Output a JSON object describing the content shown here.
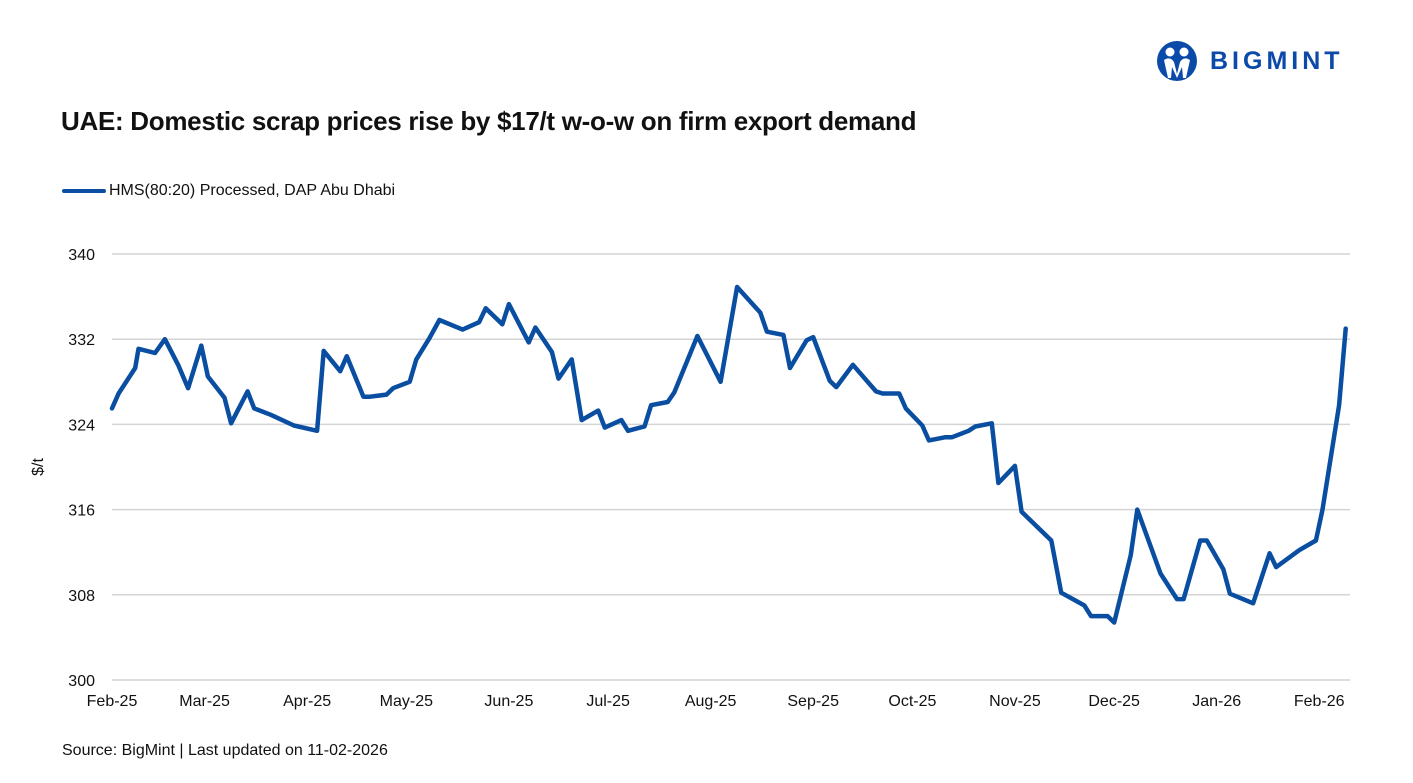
{
  "title": "UAE: Domestic scrap prices rise by $17/t w-o-w on firm export demand",
  "source": "Source: BigMint | Last updated on 11-02-2026",
  "logo": {
    "text": "BIGMINT",
    "color": "#0b4aa8"
  },
  "chart_data": {
    "type": "line",
    "title": "UAE: Domestic scrap prices rise by $17/t w-o-w on firm export demand",
    "xlabel": "",
    "ylabel": "$/t",
    "ylim": [
      300,
      340
    ],
    "yticks": [
      300,
      308,
      316,
      324,
      332,
      340
    ],
    "xlim": [
      "2025-02-01",
      "2026-02-10"
    ],
    "xticks": [
      {
        "date": "2025-02-01",
        "label": "Feb-25"
      },
      {
        "date": "2025-03-01",
        "label": "Mar-25"
      },
      {
        "date": "2025-04-01",
        "label": "Apr-25"
      },
      {
        "date": "2025-05-01",
        "label": "May-25"
      },
      {
        "date": "2025-06-01",
        "label": "Jun-25"
      },
      {
        "date": "2025-07-01",
        "label": "Jul-25"
      },
      {
        "date": "2025-08-01",
        "label": "Aug-25"
      },
      {
        "date": "2025-09-01",
        "label": "Sep-25"
      },
      {
        "date": "2025-10-01",
        "label": "Oct-25"
      },
      {
        "date": "2025-11-01",
        "label": "Nov-25"
      },
      {
        "date": "2025-12-01",
        "label": "Dec-25"
      },
      {
        "date": "2026-01-01",
        "label": "Jan-26"
      },
      {
        "date": "2026-02-01",
        "label": "Feb-26"
      }
    ],
    "grid": true,
    "legend_position": "top-left",
    "series": [
      {
        "name": "HMS(80:20) Processed, DAP Abu Dhabi",
        "color": "#0a4ea2",
        "points": [
          [
            "2025-02-01",
            325.5
          ],
          [
            "2025-02-03",
            326.9
          ],
          [
            "2025-02-08",
            329.3
          ],
          [
            "2025-02-09",
            331.1
          ],
          [
            "2025-02-14",
            330.7
          ],
          [
            "2025-02-17",
            332.0
          ],
          [
            "2025-02-21",
            329.6
          ],
          [
            "2025-02-24",
            327.4
          ],
          [
            "2025-02-28",
            331.4
          ],
          [
            "2025-03-02",
            328.5
          ],
          [
            "2025-03-07",
            326.5
          ],
          [
            "2025-03-09",
            324.1
          ],
          [
            "2025-03-14",
            327.1
          ],
          [
            "2025-03-16",
            325.5
          ],
          [
            "2025-03-21",
            324.9
          ],
          [
            "2025-03-28",
            323.9
          ],
          [
            "2025-04-04",
            323.4
          ],
          [
            "2025-04-06",
            330.9
          ],
          [
            "2025-04-11",
            329.0
          ],
          [
            "2025-04-13",
            330.4
          ],
          [
            "2025-04-18",
            326.6
          ],
          [
            "2025-04-20",
            326.6
          ],
          [
            "2025-04-25",
            326.8
          ],
          [
            "2025-04-27",
            327.4
          ],
          [
            "2025-05-02",
            328.0
          ],
          [
            "2025-05-04",
            330.1
          ],
          [
            "2025-05-08",
            332.1
          ],
          [
            "2025-05-11",
            333.8
          ],
          [
            "2025-05-18",
            332.9
          ],
          [
            "2025-05-23",
            333.6
          ],
          [
            "2025-05-25",
            334.9
          ],
          [
            "2025-05-30",
            333.4
          ],
          [
            "2025-06-01",
            335.3
          ],
          [
            "2025-06-07",
            331.7
          ],
          [
            "2025-06-09",
            333.1
          ],
          [
            "2025-06-14",
            330.8
          ],
          [
            "2025-06-16",
            328.3
          ],
          [
            "2025-06-20",
            330.1
          ],
          [
            "2025-06-23",
            324.4
          ],
          [
            "2025-06-28",
            325.3
          ],
          [
            "2025-06-30",
            323.7
          ],
          [
            "2025-07-05",
            324.4
          ],
          [
            "2025-07-07",
            323.4
          ],
          [
            "2025-07-12",
            323.8
          ],
          [
            "2025-07-14",
            325.8
          ],
          [
            "2025-07-19",
            326.1
          ],
          [
            "2025-07-21",
            327.0
          ],
          [
            "2025-07-28",
            332.3
          ],
          [
            "2025-08-04",
            328.0
          ],
          [
            "2025-08-09",
            336.9
          ],
          [
            "2025-08-16",
            334.5
          ],
          [
            "2025-08-18",
            332.7
          ],
          [
            "2025-08-23",
            332.4
          ],
          [
            "2025-08-25",
            329.3
          ],
          [
            "2025-08-30",
            331.9
          ],
          [
            "2025-09-01",
            332.2
          ],
          [
            "2025-09-06",
            328.1
          ],
          [
            "2025-09-08",
            327.5
          ],
          [
            "2025-09-13",
            329.6
          ],
          [
            "2025-09-20",
            327.1
          ],
          [
            "2025-09-22",
            326.9
          ],
          [
            "2025-09-27",
            326.9
          ],
          [
            "2025-09-29",
            325.5
          ],
          [
            "2025-10-04",
            323.9
          ],
          [
            "2025-10-06",
            322.5
          ],
          [
            "2025-10-11",
            322.8
          ],
          [
            "2025-10-13",
            322.8
          ],
          [
            "2025-10-18",
            323.4
          ],
          [
            "2025-10-20",
            323.8
          ],
          [
            "2025-10-25",
            324.1
          ],
          [
            "2025-10-27",
            318.5
          ],
          [
            "2025-11-01",
            320.1
          ],
          [
            "2025-11-03",
            315.8
          ],
          [
            "2025-11-12",
            313.1
          ],
          [
            "2025-11-15",
            308.2
          ],
          [
            "2025-11-22",
            307.0
          ],
          [
            "2025-11-24",
            306.0
          ],
          [
            "2025-11-29",
            306.0
          ],
          [
            "2025-12-01",
            305.4
          ],
          [
            "2025-12-06",
            311.7
          ],
          [
            "2025-12-08",
            316.0
          ],
          [
            "2025-12-15",
            310.0
          ],
          [
            "2025-12-20",
            307.6
          ],
          [
            "2025-12-22",
            307.6
          ],
          [
            "2025-12-27",
            313.1
          ],
          [
            "2025-12-29",
            313.1
          ],
          [
            "2026-01-03",
            310.4
          ],
          [
            "2026-01-05",
            308.1
          ],
          [
            "2026-01-12",
            307.2
          ],
          [
            "2026-01-17",
            311.9
          ],
          [
            "2026-01-19",
            310.6
          ],
          [
            "2026-01-26",
            312.2
          ],
          [
            "2026-01-31",
            313.1
          ],
          [
            "2026-02-02",
            316.0
          ],
          [
            "2026-02-07",
            325.8
          ],
          [
            "2026-02-09",
            333.0
          ]
        ]
      }
    ]
  }
}
